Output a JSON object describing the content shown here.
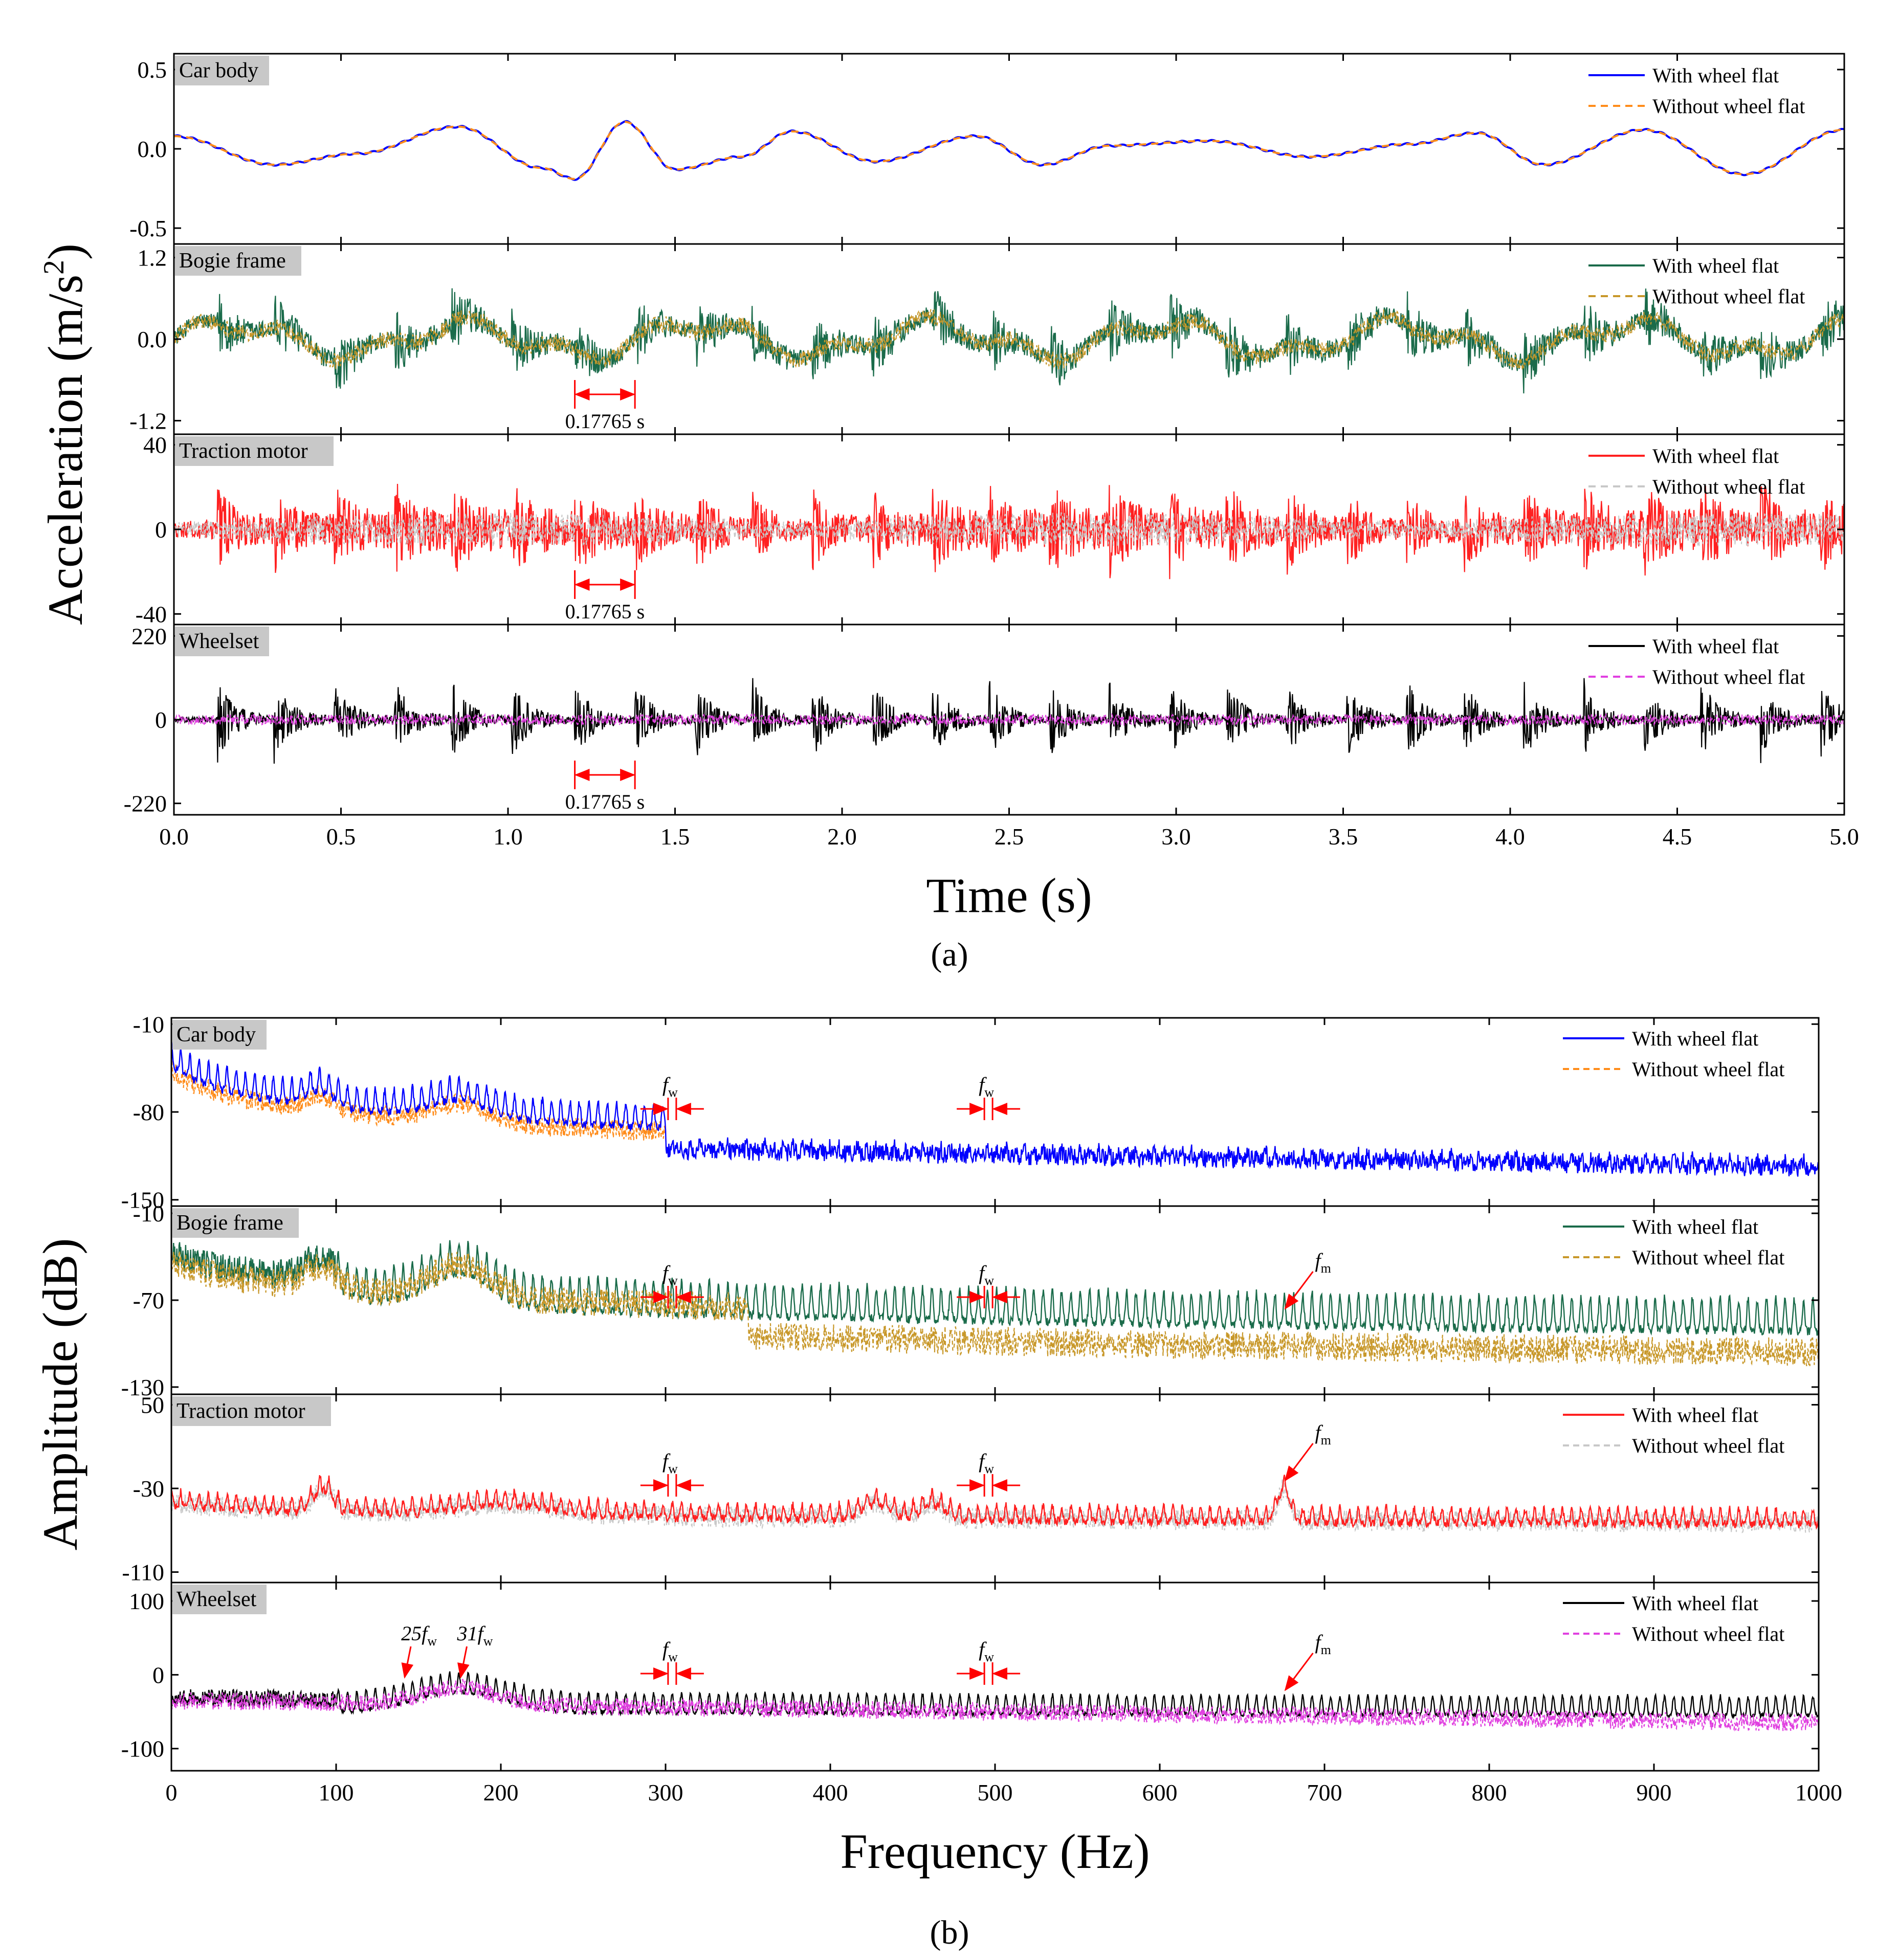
{
  "figure": {
    "caption_a": "(a)",
    "caption_b": "(b)"
  },
  "chart_data": [
    {
      "type": "line",
      "id": "time-domain",
      "title": "",
      "xlabel": "Time (s)",
      "ylabel": "Acceleration (m/s2)",
      "ylabel_unit_sup": "2",
      "xlim": [
        0,
        5
      ],
      "xticks": [
        "0.0",
        "0.5",
        "1.0",
        "1.5",
        "2.0",
        "2.5",
        "3.0",
        "3.5",
        "4.0",
        "4.5",
        "5.0"
      ],
      "xtick_values": [
        0,
        0.5,
        1.0,
        1.5,
        2.0,
        2.5,
        3.0,
        3.5,
        4.0,
        4.5,
        5.0
      ],
      "impact_times": [
        0.13,
        0.3,
        0.48,
        0.66,
        0.83,
        1.01,
        1.2,
        1.38,
        1.56,
        1.73,
        1.91,
        2.09,
        2.27,
        2.44,
        2.62,
        2.8,
        2.98,
        3.15,
        3.33,
        3.51,
        3.69,
        3.86,
        4.04,
        4.22,
        4.4,
        4.57,
        4.75,
        4.93
      ],
      "panels": [
        {
          "name": "Car body",
          "ylim": [
            -0.6,
            0.6
          ],
          "yticks": [
            "0.5",
            "0.0",
            "-0.5"
          ],
          "ytick_values": [
            0.5,
            0.0,
            -0.5
          ],
          "series": [
            {
              "name": "With wheel flat",
              "color": "#0000ff",
              "style": "solid"
            },
            {
              "name": "Without wheel flat",
              "color": "#ff8c1a",
              "style": "dashed"
            }
          ],
          "envelope": {
            "t": [
              0,
              0.3,
              0.55,
              0.85,
              1.1,
              1.2,
              1.35,
              1.5,
              1.7,
              1.85,
              2.1,
              2.4,
              2.6,
              2.8,
              3.1,
              3.4,
              3.7,
              3.9,
              4.1,
              4.4,
              4.7,
              5.0
            ],
            "v": [
              0.08,
              -0.1,
              -0.03,
              0.14,
              -0.12,
              -0.19,
              0.17,
              -0.13,
              -0.05,
              0.11,
              -0.08,
              0.08,
              -0.1,
              0.02,
              0.05,
              -0.05,
              0.03,
              0.1,
              -0.1,
              0.12,
              -0.16,
              0.12
            ]
          },
          "annotation": null
        },
        {
          "name": "Bogie frame",
          "ylim": [
            -1.4,
            1.4
          ],
          "yticks": [
            "1.2",
            "0.0",
            "-1.2"
          ],
          "ytick_values": [
            1.2,
            0.0,
            -1.2
          ],
          "series": [
            {
              "name": "With wheel flat",
              "color": "#1a6b4a",
              "style": "solid"
            },
            {
              "name": "Without wheel flat",
              "color": "#c8982a",
              "style": "dashed"
            }
          ],
          "annotation": {
            "text": "0.17765 s",
            "t1": 1.2,
            "t2": 1.38
          }
        },
        {
          "name": "Traction motor",
          "ylim": [
            -45,
            45
          ],
          "yticks": [
            "40",
            "0",
            "-40"
          ],
          "ytick_values": [
            40,
            0,
            -40
          ],
          "series": [
            {
              "name": "With wheel flat",
              "color": "#ff2020",
              "style": "solid"
            },
            {
              "name": "Without wheel flat",
              "color": "#c8c8c8",
              "style": "dashed"
            }
          ],
          "annotation": {
            "text": "0.17765 s",
            "t1": 1.2,
            "t2": 1.38
          }
        },
        {
          "name": "Wheelset",
          "ylim": [
            -250,
            250
          ],
          "yticks": [
            "220",
            "0",
            "-220"
          ],
          "ytick_values": [
            220,
            0,
            -220
          ],
          "series": [
            {
              "name": "With wheel flat",
              "color": "#000000",
              "style": "solid"
            },
            {
              "name": "Without wheel flat",
              "color": "#e040e0",
              "style": "dashed"
            }
          ],
          "annotation": {
            "text": "0.17765 s",
            "t1": 1.2,
            "t2": 1.38
          }
        }
      ]
    },
    {
      "type": "line",
      "id": "frequency-domain",
      "title": "",
      "xlabel": "Frequency (Hz)",
      "ylabel": "Amplitude (dB)",
      "xlim": [
        0,
        1000
      ],
      "xticks": [
        "0",
        "100",
        "200",
        "300",
        "400",
        "500",
        "600",
        "700",
        "800",
        "900",
        "1000"
      ],
      "xtick_values": [
        0,
        100,
        200,
        300,
        400,
        500,
        600,
        700,
        800,
        900,
        1000
      ],
      "fw_spacing_hz": 5.63,
      "panels": [
        {
          "name": "Car body",
          "ylim": [
            -155,
            -5
          ],
          "yticks": [
            "-10",
            "-80",
            "-150"
          ],
          "ytick_values": [
            -10,
            -80,
            -150
          ],
          "series": [
            {
              "name": "With wheel flat",
              "color": "#0000ff",
              "style": "solid"
            },
            {
              "name": "Without wheel flat",
              "color": "#ff8c1a",
              "style": "dashed"
            }
          ],
          "fw_marks": [
            {
              "label": "f",
              "sub": "w",
              "hz": 304
            },
            {
              "label": "f",
              "sub": "w",
              "hz": 496
            }
          ],
          "fm_mark": null,
          "harmonic_marks": []
        },
        {
          "name": "Bogie frame",
          "ylim": [
            -135,
            -5
          ],
          "yticks": [
            "-10",
            "-70",
            "-130"
          ],
          "ytick_values": [
            -10,
            -70,
            -130
          ],
          "series": [
            {
              "name": "With wheel flat",
              "color": "#1a6b4a",
              "style": "solid"
            },
            {
              "name": "Without wheel flat",
              "color": "#c8982a",
              "style": "dashed"
            }
          ],
          "fw_marks": [
            {
              "label": "f",
              "sub": "w",
              "hz": 304
            },
            {
              "label": "f",
              "sub": "w",
              "hz": 496
            }
          ],
          "fm_mark": {
            "label": "f",
            "sub": "m",
            "hz": 675
          },
          "harmonic_marks": []
        },
        {
          "name": "Traction motor",
          "ylim": [
            -120,
            60
          ],
          "yticks": [
            "50",
            "-30",
            "-110"
          ],
          "ytick_values": [
            50,
            -30,
            -110
          ],
          "series": [
            {
              "name": "With wheel flat",
              "color": "#ff2020",
              "style": "solid"
            },
            {
              "name": "Without wheel flat",
              "color": "#c8c8c8",
              "style": "dashed"
            }
          ],
          "fw_marks": [
            {
              "label": "f",
              "sub": "w",
              "hz": 304
            },
            {
              "label": "f",
              "sub": "w",
              "hz": 496
            }
          ],
          "fm_mark": {
            "label": "f",
            "sub": "m",
            "hz": 675
          },
          "harmonic_marks": []
        },
        {
          "name": "Wheelset",
          "ylim": [
            -130,
            125
          ],
          "yticks": [
            "100",
            "0",
            "-100"
          ],
          "ytick_values": [
            100,
            0,
            -100
          ],
          "series": [
            {
              "name": "With wheel flat",
              "color": "#000000",
              "style": "solid"
            },
            {
              "name": "Without wheel flat",
              "color": "#e040e0",
              "style": "dashed"
            }
          ],
          "fw_marks": [
            {
              "label": "f",
              "sub": "w",
              "hz": 304
            },
            {
              "label": "f",
              "sub": "w",
              "hz": 496
            }
          ],
          "fm_mark": {
            "label": "f",
            "sub": "m",
            "hz": 675
          },
          "harmonic_marks": [
            {
              "label": "25f",
              "sub": "w",
              "hz": 141
            },
            {
              "label": "31f",
              "sub": "w",
              "hz": 175
            }
          ]
        }
      ]
    }
  ]
}
